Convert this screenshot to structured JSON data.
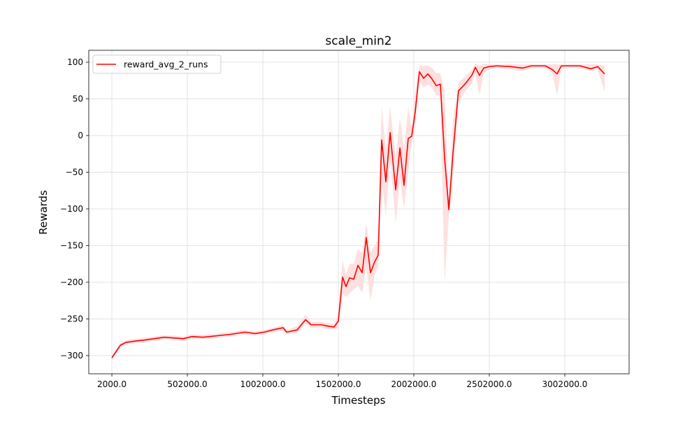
{
  "chart_data": {
    "type": "line",
    "title": "scale_min2",
    "xlabel": "Timesteps",
    "ylabel": "Rewards",
    "x": [
      2000,
      25000,
      58000,
      95000,
      164000,
      210000,
      280000,
      349000,
      419000,
      474000,
      534000,
      604000,
      697000,
      789000,
      882000,
      951000,
      1011000,
      1067000,
      1136000,
      1160000,
      1229000,
      1285000,
      1322000,
      1391000,
      1437000,
      1474000,
      1502000,
      1530000,
      1553000,
      1576000,
      1604000,
      1632000,
      1660000,
      1687000,
      1715000,
      1743000,
      1766000,
      1789000,
      1817000,
      1845000,
      1882000,
      1910000,
      1937000,
      1965000,
      1988000,
      2011000,
      2039000,
      2067000,
      2095000,
      2123000,
      2150000,
      2178000,
      2206000,
      2234000,
      2261000,
      2298000,
      2340000,
      2386000,
      2410000,
      2437000,
      2465000,
      2502000,
      2549000,
      2641000,
      2724000,
      2780000,
      2873000,
      2919000,
      2951000,
      2979000,
      3104000,
      3174000,
      3220000,
      3266000
    ],
    "series": [
      {
        "name": "reward_avg_2_runs",
        "color": "#ff0000",
        "values": [
          -303,
          -296,
          -286,
          -282,
          -280,
          -279,
          -277,
          -275,
          -276,
          -277,
          -274,
          -275,
          -273,
          -271,
          -268,
          -270,
          -268,
          -265,
          -262,
          -268,
          -265,
          -251,
          -258,
          -258,
          -260,
          -261,
          -253,
          -193,
          -206,
          -194,
          -196,
          -177,
          -187,
          -139,
          -187,
          -172,
          -163,
          -6,
          -63,
          4,
          -74,
          -17,
          -68,
          -4,
          -1,
          32,
          87,
          78,
          84,
          77,
          68,
          70,
          -31,
          -101,
          -25,
          61,
          70,
          82,
          93,
          82,
          92,
          94,
          95,
          94,
          92,
          95,
          95,
          90,
          84,
          95,
          95,
          91,
          94,
          84
        ]
      }
    ],
    "band": {
      "color": "#fde0e0",
      "lower": [
        -306,
        -299,
        -289,
        -285,
        -283,
        -282,
        -280,
        -278,
        -279,
        -280,
        -277,
        -278,
        -276,
        -274,
        -271,
        -273,
        -271,
        -268,
        -266,
        -271,
        -269,
        -256,
        -262,
        -262,
        -264,
        -265,
        -262,
        -215,
        -220,
        -215,
        -210,
        -205,
        -215,
        -180,
        -225,
        -190,
        -180,
        -60,
        -110,
        -30,
        -120,
        -60,
        -100,
        -50,
        -10,
        10,
        75,
        65,
        70,
        65,
        55,
        55,
        -200,
        -110,
        -60,
        45,
        60,
        70,
        85,
        55,
        85,
        90,
        92,
        90,
        88,
        92,
        92,
        85,
        55,
        92,
        92,
        88,
        90,
        60
      ],
      "upper": [
        -300,
        -293,
        -283,
        -279,
        -277,
        -276,
        -274,
        -272,
        -273,
        -274,
        -271,
        -272,
        -270,
        -268,
        -265,
        -267,
        -265,
        -262,
        -258,
        -265,
        -260,
        -244,
        -254,
        -254,
        -256,
        -257,
        -244,
        -170,
        -190,
        -175,
        -175,
        -155,
        -160,
        -120,
        -160,
        -150,
        -140,
        40,
        -20,
        40,
        -30,
        25,
        -20,
        40,
        10,
        60,
        95,
        95,
        95,
        92,
        85,
        85,
        60,
        -90,
        20,
        72,
        80,
        90,
        98,
        95,
        98,
        97,
        97,
        97,
        97,
        97,
        97,
        97,
        97,
        97,
        97,
        97,
        97,
        95
      ]
    },
    "xlim": [
      -151000,
      3428000
    ],
    "ylim": [
      -324.8,
      116.2
    ],
    "xticks": [
      {
        "value": 2000,
        "label": "2000.0"
      },
      {
        "value": 502000,
        "label": "502000.0"
      },
      {
        "value": 1002000,
        "label": "1002000.0"
      },
      {
        "value": 1502000,
        "label": "1502000.0"
      },
      {
        "value": 2002000,
        "label": "2002000.0"
      },
      {
        "value": 2502000,
        "label": "2502000.0"
      },
      {
        "value": 3002000,
        "label": "3002000.0"
      }
    ],
    "yticks": [
      {
        "value": -300,
        "label": "−300"
      },
      {
        "value": -250,
        "label": "−250"
      },
      {
        "value": -200,
        "label": "−200"
      },
      {
        "value": -150,
        "label": "−150"
      },
      {
        "value": -100,
        "label": "−100"
      },
      {
        "value": -50,
        "label": "−50"
      },
      0,
      50,
      100
    ],
    "grid": true,
    "legend": "upper left"
  }
}
